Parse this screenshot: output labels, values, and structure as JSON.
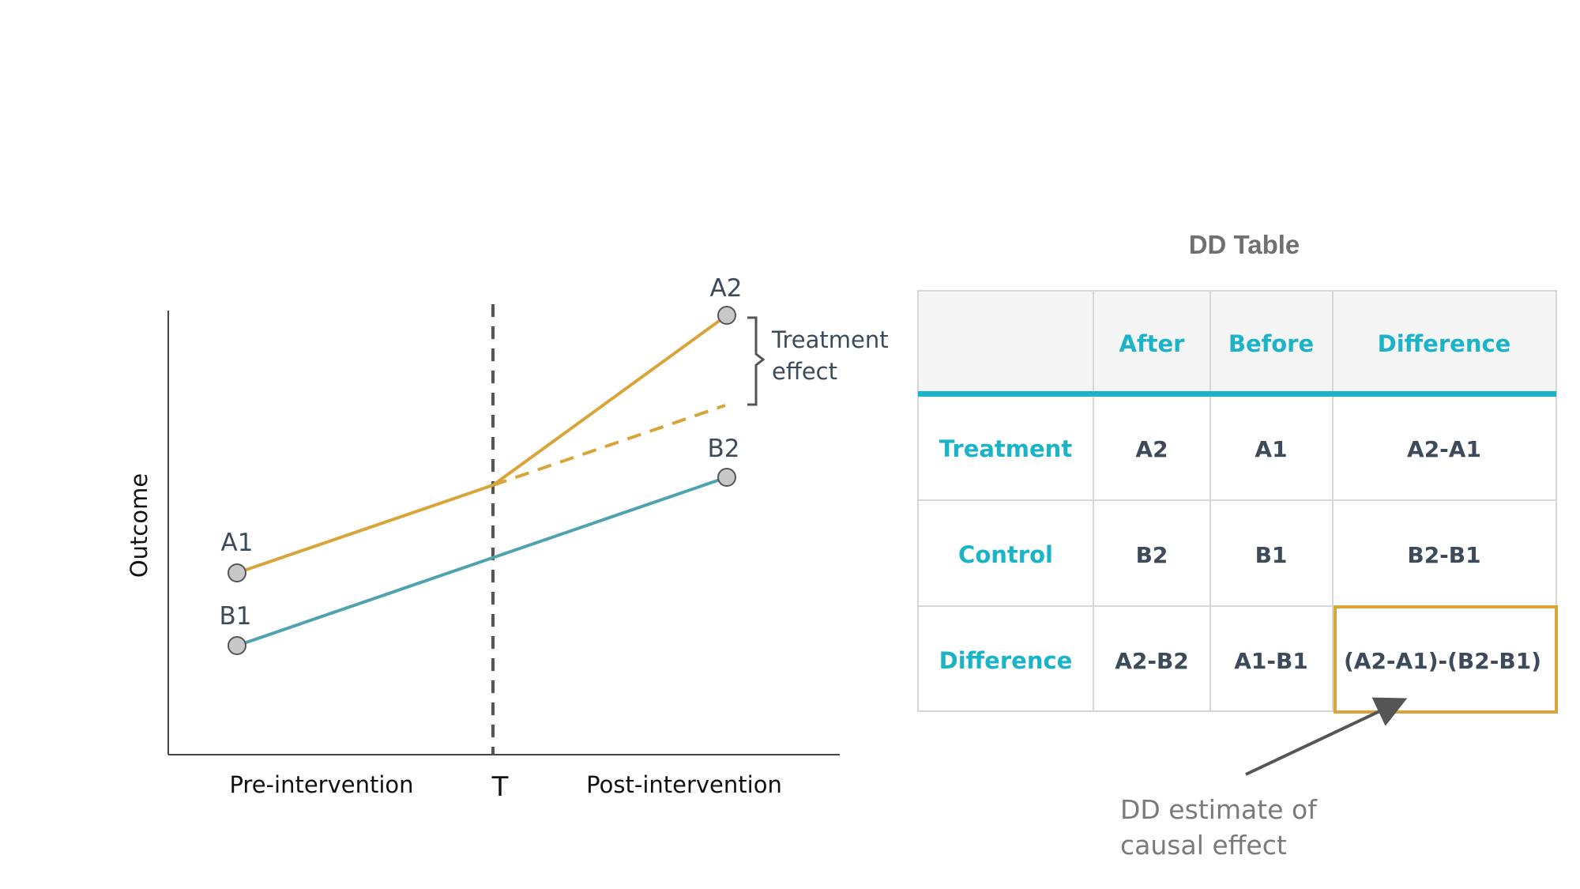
{
  "colors": {
    "treatment_line": "#d9a43a",
    "control_line": "#4fa3ae",
    "teal_accent": "#1bb3c7",
    "highlight_box": "#d9a43a",
    "marker_fill": "#c8c8c8"
  },
  "chart": {
    "y_axis_label": "Outcome",
    "x_categories": [
      "Pre-intervention",
      "T",
      "Post-intervention"
    ],
    "points": {
      "A1": "A1",
      "A2": "A2",
      "B1": "B1",
      "B2": "B2"
    },
    "annotation": {
      "line1": "Treatment",
      "line2": "effect"
    }
  },
  "table": {
    "title": "DD Table",
    "columns": [
      "After",
      "Before",
      "Difference"
    ],
    "rows": [
      {
        "label": "Treatment",
        "cells": [
          "A2",
          "A1",
          "A2-A1"
        ]
      },
      {
        "label": "Control",
        "cells": [
          "B2",
          "B1",
          "B2-B1"
        ]
      },
      {
        "label": "Difference",
        "cells": [
          "A2-B2",
          "A1-B1",
          "(A2-A1)-(B2-B1)"
        ]
      }
    ]
  },
  "note": {
    "line1": "DD estimate of",
    "line2": "causal effect"
  }
}
